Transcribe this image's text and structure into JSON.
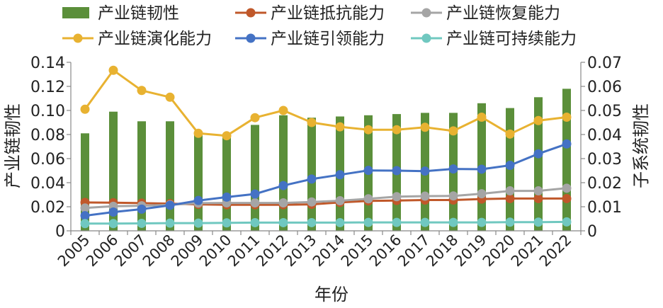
{
  "chart_data": {
    "type": "bar+line",
    "title": "",
    "xlabel": "年份",
    "ylabel_left": "产业链韧性",
    "ylabel_right": "子系统韧性",
    "ylim_left": [
      0,
      0.14
    ],
    "ylim_right": [
      0,
      0.07
    ],
    "yticks_left": [
      "0",
      "0.02",
      "0.04",
      "0.06",
      "0.08",
      "0.10",
      "0.12",
      "0.14"
    ],
    "yticks_right": [
      "0",
      "0.01",
      "0.02",
      "0.03",
      "0.04",
      "0.05",
      "0.06",
      "0.07"
    ],
    "categories": [
      "2005",
      "2006",
      "2007",
      "2008",
      "2009",
      "2010",
      "2011",
      "2012",
      "2013",
      "2014",
      "2015",
      "2016",
      "2017",
      "2018",
      "2019",
      "2020",
      "2021",
      "2022"
    ],
    "bar_series": {
      "name": "产业链韧性",
      "axis": "left",
      "color": "#5b8f3a",
      "values": [
        0.081,
        0.099,
        0.091,
        0.091,
        0.082,
        0.08,
        0.088,
        0.096,
        0.094,
        0.095,
        0.096,
        0.097,
        0.098,
        0.098,
        0.106,
        0.102,
        0.111,
        0.118
      ]
    },
    "line_series": [
      {
        "name": "产业链抵抗能力",
        "axis": "right",
        "color": "#c0582a",
        "values": [
          0.0118,
          0.0117,
          0.0115,
          0.0113,
          0.011,
          0.0108,
          0.0108,
          0.0108,
          0.011,
          0.0118,
          0.0124,
          0.0126,
          0.0128,
          0.0128,
          0.0132,
          0.0134,
          0.0134,
          0.0134
        ]
      },
      {
        "name": "产业链恢复能力",
        "axis": "right",
        "color": "#a5a5a5",
        "values": [
          0.0095,
          0.0102,
          0.0104,
          0.0108,
          0.0115,
          0.0116,
          0.0116,
          0.0116,
          0.012,
          0.0125,
          0.0133,
          0.0142,
          0.0144,
          0.0145,
          0.0154,
          0.0166,
          0.0166,
          0.0177
        ]
      },
      {
        "name": "产业链演化能力",
        "axis": "right",
        "color": "#e8b231",
        "values": [
          0.0505,
          0.0667,
          0.0583,
          0.0555,
          0.0405,
          0.0395,
          0.047,
          0.05,
          0.045,
          0.0432,
          0.042,
          0.042,
          0.043,
          0.0415,
          0.0472,
          0.0402,
          0.0458,
          0.0472
        ]
      },
      {
        "name": "产业链引领能力",
        "axis": "right",
        "color": "#4472c4",
        "values": [
          0.0063,
          0.0078,
          0.009,
          0.0106,
          0.0126,
          0.014,
          0.0153,
          0.0188,
          0.0215,
          0.0233,
          0.0251,
          0.025,
          0.0248,
          0.0257,
          0.0256,
          0.0272,
          0.032,
          0.0361
        ]
      },
      {
        "name": "产业链可持续能力",
        "axis": "right",
        "color": "#70c8c0",
        "values": [
          0.003,
          0.003,
          0.0031,
          0.0032,
          0.0032,
          0.0033,
          0.0034,
          0.0034,
          0.0034,
          0.0034,
          0.0035,
          0.0035,
          0.0035,
          0.0035,
          0.0035,
          0.0036,
          0.0036,
          0.0037
        ]
      }
    ],
    "legend_order": [
      "产业链韧性",
      "产业链抵抗能力",
      "产业链恢复能力",
      "产业链演化能力",
      "产业链引领能力",
      "产业链可持续能力"
    ],
    "legend_position": "top",
    "grid": false
  }
}
